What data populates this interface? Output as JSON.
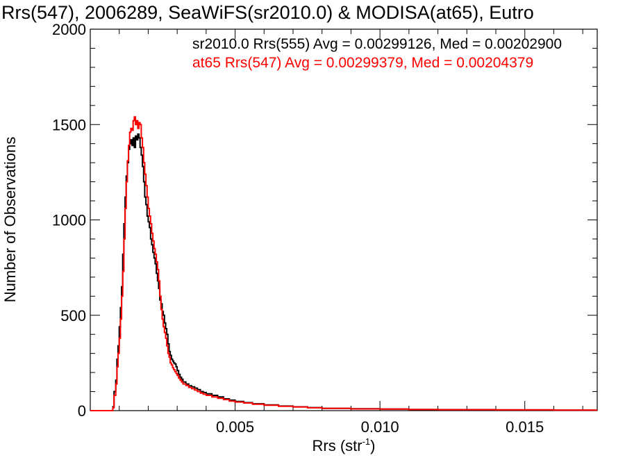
{
  "chart_data": {
    "type": "line",
    "title": "Rrs(547), 2006289, SeaWiFS(sr2010.0) & MODISA(at65), Eutro",
    "xlabel": "Rrs (str",
    "xlabel_sup": "-1",
    "xlabel_close": ")",
    "ylabel": "Number of Observations",
    "xlim": [
      0.0,
      0.0175
    ],
    "ylim": [
      0,
      2000
    ],
    "x_ticks": [
      0.005,
      0.01,
      0.015
    ],
    "x_tick_labels": [
      "0.005",
      "0.010",
      "0.015"
    ],
    "y_ticks": [
      0,
      500,
      1000,
      1500,
      2000
    ],
    "y_tick_labels": [
      "0",
      "500",
      "1000",
      "1500",
      "2000"
    ],
    "grid": false,
    "series": [
      {
        "name": "sr2010.0 Rrs(555) Avg = 0.00299126, Med = 0.00202900",
        "color": "#000000",
        "points": [
          [
            0,
            0
          ],
          [
            0.0007,
            0
          ],
          [
            0.00078,
            20
          ],
          [
            0.00082,
            100
          ],
          [
            0.00088,
            160
          ],
          [
            0.00092,
            270
          ],
          [
            0.00096,
            340
          ],
          [
            0.001,
            440
          ],
          [
            0.00104,
            540
          ],
          [
            0.00108,
            650
          ],
          [
            0.00112,
            820
          ],
          [
            0.00116,
            980
          ],
          [
            0.0012,
            1120
          ],
          [
            0.00124,
            1230
          ],
          [
            0.00128,
            1300
          ],
          [
            0.00132,
            1370
          ],
          [
            0.00136,
            1400
          ],
          [
            0.0014,
            1420
          ],
          [
            0.00144,
            1390
          ],
          [
            0.00148,
            1430
          ],
          [
            0.00152,
            1380
          ],
          [
            0.00156,
            1440
          ],
          [
            0.0016,
            1420
          ],
          [
            0.00164,
            1450
          ],
          [
            0.00168,
            1430
          ],
          [
            0.00172,
            1380
          ],
          [
            0.00176,
            1340
          ],
          [
            0.0018,
            1280
          ],
          [
            0.00184,
            1200
          ],
          [
            0.00188,
            1120
          ],
          [
            0.00192,
            1080
          ],
          [
            0.00196,
            1020
          ],
          [
            0.002,
            990
          ],
          [
            0.00204,
            960
          ],
          [
            0.00208,
            900
          ],
          [
            0.00212,
            870
          ],
          [
            0.00216,
            830
          ],
          [
            0.0022,
            800
          ],
          [
            0.00224,
            770
          ],
          [
            0.00228,
            720
          ],
          [
            0.00232,
            680
          ],
          [
            0.00236,
            640
          ],
          [
            0.0024,
            580
          ],
          [
            0.00244,
            560
          ],
          [
            0.00248,
            520
          ],
          [
            0.00252,
            500
          ],
          [
            0.00256,
            460
          ],
          [
            0.0026,
            430
          ],
          [
            0.00264,
            400
          ],
          [
            0.00268,
            350
          ],
          [
            0.00272,
            310
          ],
          [
            0.00276,
            290
          ],
          [
            0.0028,
            270
          ],
          [
            0.00284,
            260
          ],
          [
            0.00288,
            250
          ],
          [
            0.00292,
            245
          ],
          [
            0.00296,
            230
          ],
          [
            0.003,
            210
          ],
          [
            0.00305,
            190
          ],
          [
            0.0031,
            175
          ],
          [
            0.00315,
            165
          ],
          [
            0.0032,
            150
          ],
          [
            0.0033,
            140
          ],
          [
            0.0034,
            130
          ],
          [
            0.0035,
            125
          ],
          [
            0.0036,
            118
          ],
          [
            0.0037,
            110
          ],
          [
            0.0038,
            100
          ],
          [
            0.0039,
            95
          ],
          [
            0.004,
            88
          ],
          [
            0.0042,
            80
          ],
          [
            0.0044,
            72
          ],
          [
            0.0046,
            62
          ],
          [
            0.0048,
            55
          ],
          [
            0.005,
            48
          ],
          [
            0.0053,
            42
          ],
          [
            0.0056,
            36
          ],
          [
            0.006,
            30
          ],
          [
            0.0065,
            24
          ],
          [
            0.007,
            20
          ],
          [
            0.0075,
            16
          ],
          [
            0.008,
            12
          ],
          [
            0.009,
            10
          ],
          [
            0.01,
            8
          ],
          [
            0.011,
            6
          ],
          [
            0.012,
            5
          ],
          [
            0.013,
            5
          ],
          [
            0.014,
            4
          ],
          [
            0.015,
            4
          ],
          [
            0.016,
            3
          ],
          [
            0.017,
            3
          ],
          [
            0.0175,
            3
          ]
        ]
      },
      {
        "name": "at65 Rrs(547) Avg = 0.00299379, Med = 0.00204379",
        "color": "#ff0000",
        "points": [
          [
            0,
            0
          ],
          [
            0.0007,
            0
          ],
          [
            0.00078,
            15
          ],
          [
            0.00082,
            80
          ],
          [
            0.00088,
            140
          ],
          [
            0.00092,
            230
          ],
          [
            0.00096,
            300
          ],
          [
            0.001,
            380
          ],
          [
            0.00104,
            480
          ],
          [
            0.00108,
            600
          ],
          [
            0.00112,
            730
          ],
          [
            0.00116,
            900
          ],
          [
            0.0012,
            1060
          ],
          [
            0.00124,
            1200
          ],
          [
            0.00128,
            1310
          ],
          [
            0.00132,
            1390
          ],
          [
            0.00136,
            1460
          ],
          [
            0.0014,
            1480
          ],
          [
            0.00144,
            1470
          ],
          [
            0.00148,
            1520
          ],
          [
            0.00152,
            1540
          ],
          [
            0.00156,
            1500
          ],
          [
            0.0016,
            1520
          ],
          [
            0.00164,
            1480
          ],
          [
            0.00168,
            1510
          ],
          [
            0.00172,
            1500
          ],
          [
            0.00176,
            1430
          ],
          [
            0.0018,
            1380
          ],
          [
            0.00184,
            1300
          ],
          [
            0.00188,
            1240
          ],
          [
            0.00192,
            1180
          ],
          [
            0.00196,
            1120
          ],
          [
            0.002,
            1060
          ],
          [
            0.00204,
            1020
          ],
          [
            0.00208,
            980
          ],
          [
            0.00212,
            930
          ],
          [
            0.00216,
            890
          ],
          [
            0.0022,
            850
          ],
          [
            0.00224,
            820
          ],
          [
            0.00228,
            780
          ],
          [
            0.00232,
            740
          ],
          [
            0.00236,
            680
          ],
          [
            0.0024,
            600
          ],
          [
            0.00244,
            530
          ],
          [
            0.00248,
            480
          ],
          [
            0.00252,
            440
          ],
          [
            0.00256,
            410
          ],
          [
            0.0026,
            380
          ],
          [
            0.00264,
            340
          ],
          [
            0.00268,
            300
          ],
          [
            0.00272,
            280
          ],
          [
            0.00276,
            250
          ],
          [
            0.0028,
            240
          ],
          [
            0.00284,
            225
          ],
          [
            0.00288,
            215
          ],
          [
            0.00292,
            205
          ],
          [
            0.00296,
            195
          ],
          [
            0.003,
            185
          ],
          [
            0.00305,
            170
          ],
          [
            0.0031,
            160
          ],
          [
            0.00315,
            150
          ],
          [
            0.0032,
            140
          ],
          [
            0.0033,
            132
          ],
          [
            0.0034,
            122
          ],
          [
            0.0035,
            115
          ],
          [
            0.0036,
            108
          ],
          [
            0.0037,
            100
          ],
          [
            0.0038,
            92
          ],
          [
            0.0039,
            86
          ],
          [
            0.004,
            80
          ],
          [
            0.0042,
            72
          ],
          [
            0.0044,
            65
          ],
          [
            0.0046,
            58
          ],
          [
            0.0048,
            50
          ],
          [
            0.005,
            45
          ],
          [
            0.0053,
            40
          ],
          [
            0.0056,
            34
          ],
          [
            0.006,
            28
          ],
          [
            0.0065,
            23
          ],
          [
            0.007,
            19
          ],
          [
            0.0075,
            15
          ],
          [
            0.008,
            12
          ],
          [
            0.009,
            9
          ],
          [
            0.01,
            8
          ],
          [
            0.011,
            6
          ],
          [
            0.012,
            5
          ],
          [
            0.013,
            5
          ],
          [
            0.014,
            4
          ],
          [
            0.015,
            4
          ],
          [
            0.016,
            3
          ],
          [
            0.017,
            3
          ],
          [
            0.0175,
            3
          ]
        ]
      }
    ]
  }
}
